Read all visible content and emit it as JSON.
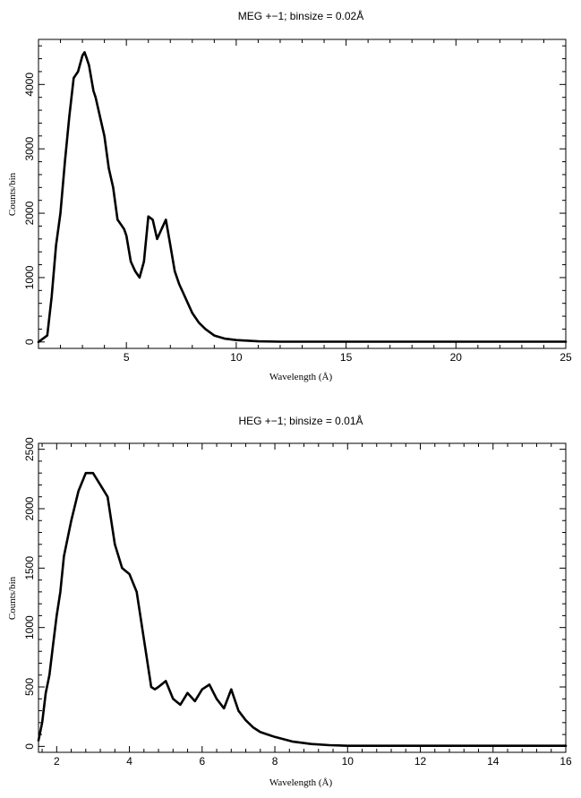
{
  "chart_data": [
    {
      "type": "line",
      "title": "MEG +−1; binsize = 0.02Å",
      "xlabel": "Wavelength (Å)",
      "ylabel": "Counts/bin",
      "xlim": [
        1.0,
        25.0
      ],
      "ylim": [
        -100,
        4700
      ],
      "xticks": [
        5,
        10,
        15,
        20,
        25
      ],
      "yticks": [
        0,
        1000,
        2000,
        3000,
        4000
      ],
      "grid": false,
      "x": [
        1.0,
        1.4,
        1.6,
        1.8,
        2.0,
        2.2,
        2.4,
        2.6,
        2.8,
        3.0,
        3.1,
        3.2,
        3.3,
        3.5,
        3.6,
        3.8,
        4.0,
        4.2,
        4.4,
        4.6,
        4.8,
        4.9,
        5.0,
        5.2,
        5.4,
        5.6,
        5.8,
        6.0,
        6.2,
        6.4,
        6.6,
        6.8,
        7.0,
        7.2,
        7.4,
        7.6,
        7.8,
        8.0,
        8.3,
        8.6,
        9.0,
        9.5,
        10.0,
        11.0,
        12.0,
        14.0,
        16.0,
        18.0,
        20.0,
        22.0,
        25.0
      ],
      "y": [
        0,
        100,
        700,
        1500,
        2000,
        2800,
        3500,
        4100,
        4200,
        4450,
        4500,
        4400,
        4300,
        3900,
        3800,
        3500,
        3200,
        2700,
        2400,
        1900,
        1800,
        1750,
        1650,
        1250,
        1100,
        1000,
        1250,
        1950,
        1900,
        1600,
        1750,
        1900,
        1500,
        1100,
        900,
        750,
        600,
        450,
        300,
        200,
        100,
        50,
        30,
        10,
        5,
        5,
        5,
        5,
        5,
        5,
        5
      ]
    },
    {
      "type": "line",
      "title": "HEG +−1; binsize = 0.01Å",
      "xlabel": "Wavelength (Å)",
      "ylabel": "Counts/bin",
      "xlim": [
        1.5,
        16.0
      ],
      "ylim": [
        -50,
        2550
      ],
      "xticks": [
        2,
        4,
        6,
        8,
        10,
        12,
        14,
        16
      ],
      "yticks": [
        0,
        500,
        1000,
        1500,
        2000,
        2500
      ],
      "grid": false,
      "x": [
        1.5,
        1.6,
        1.7,
        1.8,
        1.9,
        2.0,
        2.1,
        2.2,
        2.4,
        2.6,
        2.8,
        3.0,
        3.2,
        3.4,
        3.6,
        3.8,
        4.0,
        4.2,
        4.4,
        4.6,
        4.7,
        4.8,
        5.0,
        5.2,
        5.4,
        5.6,
        5.8,
        6.0,
        6.2,
        6.4,
        6.6,
        6.8,
        7.0,
        7.2,
        7.4,
        7.6,
        7.8,
        8.0,
        8.5,
        9.0,
        9.5,
        10.0,
        11.0,
        12.0,
        13.0,
        14.0,
        15.0,
        16.0
      ],
      "y": [
        50,
        200,
        450,
        600,
        850,
        1100,
        1300,
        1600,
        1900,
        2150,
        2300,
        2300,
        2200,
        2100,
        1700,
        1500,
        1450,
        1300,
        900,
        500,
        480,
        500,
        550,
        400,
        350,
        450,
        380,
        480,
        520,
        400,
        320,
        480,
        300,
        220,
        160,
        120,
        100,
        80,
        40,
        20,
        10,
        5,
        5,
        5,
        5,
        5,
        5,
        5
      ]
    }
  ]
}
